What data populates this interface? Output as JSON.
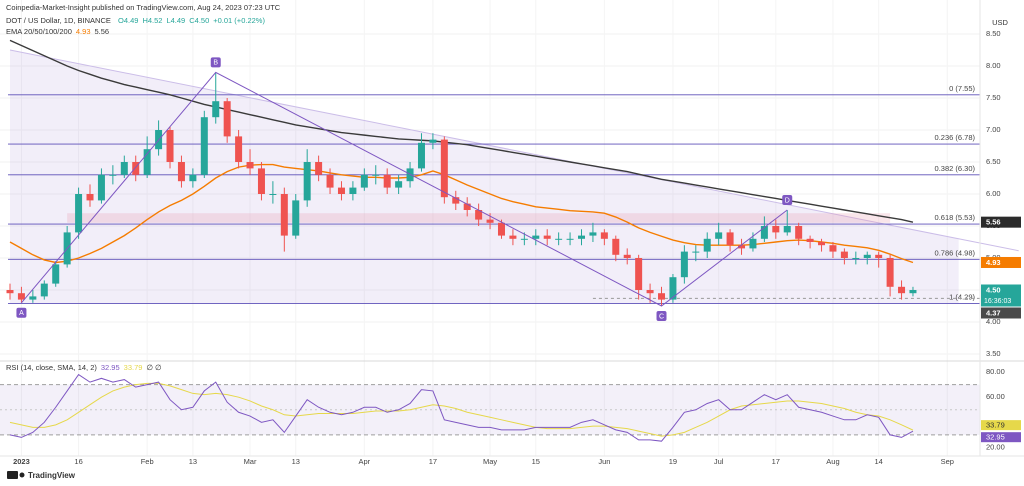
{
  "header": {
    "publisher": "Coinpedia-Market-Insight published on TradingView.com, Aug 24, 2023 07:23 UTC",
    "symbol": "DOT / US Dollar, 1D, BINANCE",
    "ohlc": [
      "O4.49",
      "H4.52",
      "L4.49",
      "C4.50",
      "+0.01 (+0.22%)"
    ],
    "currency": "USD"
  },
  "footer": {
    "brand": "TradingView"
  },
  "chart_data": {
    "type": "candlestick",
    "up_color": "#26a69a",
    "down_color": "#ef5350",
    "grid": true,
    "ylim": [
      3.4,
      8.75
    ],
    "yticks": [
      {
        "value": 3.5,
        "label": "3.50"
      },
      {
        "value": 4,
        "label": "4.00"
      },
      {
        "value": 4.5,
        "label": "4.50"
      },
      {
        "value": 5,
        "label": "5.00"
      },
      {
        "value": 5.5,
        "label": "5.50"
      },
      {
        "value": 6,
        "label": "6.00"
      },
      {
        "value": 6.5,
        "label": "6.50"
      },
      {
        "value": 7,
        "label": "7.00"
      },
      {
        "value": 7.5,
        "label": "7.50"
      },
      {
        "value": 8,
        "label": "8.00"
      },
      {
        "value": 8.5,
        "label": "8.50"
      }
    ],
    "categories": [
      null,
      "2023",
      null,
      null,
      null,
      null,
      "16",
      null,
      null,
      null,
      null,
      null,
      "Feb",
      null,
      null,
      null,
      "13",
      null,
      null,
      null,
      null,
      "Mar",
      null,
      null,
      null,
      "13",
      null,
      null,
      null,
      null,
      null,
      "Apr",
      null,
      null,
      null,
      null,
      null,
      "17",
      null,
      null,
      null,
      null,
      "May",
      null,
      null,
      null,
      "15",
      null,
      null,
      null,
      null,
      null,
      "Jun",
      null,
      null,
      null,
      null,
      null,
      "19",
      null,
      null,
      null,
      "Jul",
      null,
      null,
      null,
      null,
      "17",
      null,
      null,
      null,
      null,
      "Aug",
      null,
      null,
      null,
      "14",
      null,
      null,
      null,
      null,
      null,
      "Sep",
      null
    ],
    "candles": {
      "open": [
        4.5,
        4.45,
        4.35,
        4.4,
        4.6,
        4.9,
        5.4,
        6.0,
        5.9,
        6.3,
        6.3,
        6.5,
        6.3,
        6.7,
        7.0,
        6.5,
        6.2,
        6.3,
        7.2,
        7.45,
        6.9,
        6.5,
        6.4,
        6.0,
        6.0,
        5.35,
        5.9,
        6.5,
        6.3,
        6.1,
        6.0,
        6.1,
        6.3,
        6.3,
        6.1,
        6.2,
        6.4,
        6.8,
        6.85,
        5.95,
        5.85,
        5.75,
        5.6,
        5.55,
        5.35,
        5.3,
        5.3,
        5.35,
        5.3,
        5.3,
        5.3,
        5.35,
        5.4,
        5.3,
        5.05,
        5.0,
        4.5,
        4.45,
        4.35,
        4.7,
        5.1,
        5.1,
        5.3,
        5.4,
        5.2,
        5.15,
        5.3,
        5.5,
        5.4,
        5.5,
        5.3,
        5.25,
        5.2,
        5.1,
        5.0,
        5.0,
        5.05,
        5.0,
        4.55,
        4.45,
        null,
        null,
        null,
        null
      ],
      "high": [
        4.6,
        4.55,
        4.5,
        4.65,
        4.95,
        5.5,
        6.1,
        6.15,
        6.4,
        6.45,
        6.6,
        6.6,
        6.9,
        7.15,
        7.05,
        6.6,
        6.4,
        7.3,
        7.9,
        7.5,
        7.0,
        6.7,
        6.5,
        6.2,
        6.1,
        6.0,
        6.7,
        6.6,
        6.4,
        6.2,
        6.2,
        6.4,
        6.45,
        6.4,
        6.3,
        6.5,
        6.95,
        6.95,
        6.9,
        6.05,
        5.95,
        5.85,
        5.7,
        5.6,
        5.45,
        5.4,
        5.45,
        5.45,
        5.4,
        5.4,
        5.45,
        5.55,
        5.45,
        5.35,
        5.15,
        5.05,
        4.6,
        4.55,
        4.75,
        5.2,
        5.2,
        5.4,
        5.55,
        5.45,
        5.3,
        5.4,
        5.65,
        5.6,
        5.75,
        5.55,
        5.35,
        5.3,
        5.25,
        5.15,
        5.1,
        5.1,
        5.1,
        5.05,
        4.65,
        4.55,
        null,
        null,
        null,
        null
      ],
      "low": [
        4.35,
        4.3,
        4.3,
        4.35,
        4.55,
        4.85,
        5.3,
        5.8,
        5.85,
        6.15,
        6.25,
        6.2,
        6.25,
        6.6,
        6.4,
        6.1,
        6.1,
        6.25,
        7.1,
        6.8,
        6.4,
        6.3,
        5.9,
        5.85,
        5.1,
        5.3,
        5.8,
        6.2,
        6.0,
        5.9,
        5.9,
        6.05,
        6.15,
        6.0,
        6.0,
        6.1,
        6.35,
        6.7,
        5.85,
        5.75,
        5.65,
        5.5,
        5.45,
        5.3,
        5.2,
        5.2,
        5.2,
        5.2,
        5.2,
        5.2,
        5.2,
        5.25,
        5.2,
        4.95,
        4.9,
        4.35,
        4.3,
        4.25,
        4.3,
        4.6,
        4.95,
        5.0,
        5.2,
        5.1,
        5.05,
        5.1,
        5.25,
        5.3,
        5.35,
        5.2,
        5.15,
        5.1,
        5.0,
        4.9,
        4.9,
        4.9,
        4.85,
        4.4,
        4.35,
        4.4,
        null,
        null,
        null,
        null
      ],
      "close": [
        4.45,
        4.35,
        4.4,
        4.6,
        4.9,
        5.4,
        6.0,
        5.9,
        6.3,
        6.3,
        6.5,
        6.3,
        6.7,
        7.0,
        6.5,
        6.2,
        6.3,
        7.2,
        7.45,
        6.9,
        6.5,
        6.4,
        6.0,
        6.0,
        5.35,
        5.9,
        6.5,
        6.3,
        6.1,
        6.0,
        6.1,
        6.3,
        6.3,
        6.1,
        6.2,
        6.4,
        6.8,
        6.85,
        5.95,
        5.85,
        5.75,
        5.6,
        5.55,
        5.35,
        5.3,
        5.3,
        5.35,
        5.3,
        5.3,
        5.3,
        5.35,
        5.4,
        5.3,
        5.05,
        5.0,
        4.5,
        4.45,
        4.35,
        4.7,
        5.1,
        5.1,
        5.3,
        5.4,
        5.2,
        5.15,
        5.3,
        5.5,
        5.4,
        5.5,
        5.3,
        5.25,
        5.2,
        5.1,
        5.0,
        5.0,
        5.05,
        5.0,
        4.55,
        4.45,
        4.5,
        null,
        null,
        null,
        null
      ]
    },
    "ema": {
      "label": "EMA 20/50/100/200",
      "series": [
        {
          "color": "#f57c00",
          "last_label": "4.93",
          "values": [
            5.25,
            5.15,
            5.05,
            4.97,
            4.93,
            4.95,
            5.0,
            5.07,
            5.15,
            5.25,
            5.35,
            5.47,
            5.6,
            5.72,
            5.82,
            5.9,
            6.0,
            6.12,
            6.25,
            6.35,
            6.42,
            6.45,
            6.46,
            6.46,
            6.42,
            6.4,
            6.38,
            6.36,
            6.33,
            6.3,
            6.28,
            6.26,
            6.26,
            6.25,
            6.25,
            6.26,
            6.3,
            6.36,
            6.3,
            6.22,
            6.14,
            6.07,
            6.0,
            5.93,
            5.88,
            5.84,
            5.8,
            5.78,
            5.76,
            5.74,
            5.73,
            5.72,
            5.7,
            5.64,
            5.56,
            5.47,
            5.4,
            5.34,
            5.28,
            5.24,
            5.21,
            5.2,
            5.2,
            5.2,
            5.2,
            5.21,
            5.23,
            5.25,
            5.27,
            5.28,
            5.27,
            5.25,
            5.23,
            5.2,
            5.18,
            5.16,
            5.12,
            5.06,
            4.99,
            4.93,
            null,
            null,
            null,
            null
          ]
        },
        {
          "color": "#3a3a3a",
          "last_label": "5.56",
          "values": [
            8.4,
            8.32,
            8.24,
            8.16,
            8.08,
            8.0,
            7.93,
            7.87,
            7.81,
            7.76,
            7.71,
            7.67,
            7.63,
            7.59,
            7.55,
            7.5,
            7.45,
            7.4,
            7.36,
            7.32,
            7.28,
            7.24,
            7.2,
            7.16,
            7.12,
            7.08,
            7.05,
            7.02,
            6.99,
            6.96,
            6.94,
            6.92,
            6.9,
            6.88,
            6.86,
            6.85,
            6.84,
            6.83,
            6.81,
            6.79,
            6.77,
            6.74,
            6.71,
            6.68,
            6.65,
            6.62,
            6.59,
            6.56,
            6.53,
            6.5,
            6.47,
            6.44,
            6.41,
            6.38,
            6.35,
            6.31,
            6.27,
            6.23,
            6.2,
            6.17,
            6.14,
            6.11,
            6.08,
            6.05,
            6.02,
            5.99,
            5.96,
            5.93,
            5.9,
            5.87,
            5.84,
            5.81,
            5.78,
            5.75,
            5.72,
            5.69,
            5.66,
            5.63,
            5.6,
            5.56,
            null,
            null,
            null,
            null
          ]
        }
      ]
    },
    "fib": [
      {
        "value": 7.55,
        "label": "0 (7.55)"
      },
      {
        "value": 6.78,
        "label": "0.236 (6.78)"
      },
      {
        "value": 6.3,
        "label": "0.382 (6.30)"
      },
      {
        "value": 5.53,
        "label": "0.618 (5.53)"
      },
      {
        "value": 4.98,
        "label": "0.786 (4.98)"
      },
      {
        "value": 4.29,
        "label": "1 (4.29)"
      }
    ],
    "fib_color": "#5c4fb8",
    "pattern": {
      "color": "#7e57c2",
      "labels": [
        "A",
        "B",
        "C",
        "D"
      ],
      "values": [
        4.3,
        7.9,
        4.25,
        5.75
      ],
      "index": [
        1,
        18,
        57,
        68
      ]
    },
    "resistance": {
      "start": 8.25,
      "end": 5.3
    },
    "zone": {
      "low": 5.55,
      "high": 5.7
    },
    "dashed_level": 4.37,
    "price_tags": [
      {
        "value": 5.56,
        "label": "5.56",
        "color": "#2b2b2b"
      },
      {
        "value": 4.93,
        "label": "4.93",
        "color": "#f57c00"
      },
      {
        "value": 4.5,
        "label": "4.50",
        "color": "#26a69a",
        "countdown": "16:36:03"
      },
      {
        "value": 4.37,
        "label": "4.37",
        "color": "#4a4a4a"
      }
    ],
    "rsi": {
      "label": "RSI (14, close, SMA, 14, 2)",
      "extra": "∅ ∅",
      "ylim": [
        14,
        88
      ],
      "yticks": [
        {
          "value": 20,
          "label": "20.00"
        },
        {
          "value": 60,
          "label": "60.00"
        },
        {
          "value": 80,
          "label": "80.00"
        }
      ],
      "bands": [
        30,
        70
      ],
      "middle": 50,
      "series": [
        {
          "color": "#7e57c2",
          "last_label": "32.95",
          "values": [
            30,
            28,
            32,
            40,
            52,
            65,
            78,
            72,
            75,
            72,
            74,
            68,
            70,
            72,
            58,
            50,
            52,
            65,
            72,
            56,
            48,
            45,
            40,
            42,
            32,
            45,
            58,
            52,
            48,
            46,
            48,
            52,
            52,
            48,
            50,
            55,
            66,
            65,
            42,
            40,
            38,
            36,
            36,
            34,
            34,
            34,
            36,
            36,
            36,
            36,
            40,
            42,
            38,
            34,
            32,
            26,
            26,
            25,
            36,
            48,
            50,
            55,
            58,
            50,
            50,
            56,
            62,
            58,
            62,
            52,
            50,
            48,
            45,
            42,
            42,
            46,
            44,
            30,
            28,
            32.95,
            null,
            null,
            null,
            null
          ]
        },
        {
          "color": "#e6d84a",
          "last_label": "33.79",
          "values": [
            40,
            38,
            36,
            36,
            38,
            42,
            48,
            54,
            60,
            65,
            68,
            70,
            71,
            71,
            69,
            66,
            63,
            62,
            63,
            62,
            60,
            57,
            53,
            50,
            46,
            45,
            46,
            47,
            47,
            47,
            47,
            48,
            49,
            49,
            49,
            50,
            52,
            54,
            53,
            51,
            48,
            46,
            44,
            42,
            40,
            38,
            36,
            35,
            35,
            35,
            36,
            37,
            37,
            36,
            35,
            33,
            31,
            29,
            30,
            32,
            36,
            40,
            45,
            50,
            53,
            54,
            55,
            56,
            57,
            57,
            56,
            55,
            53,
            51,
            48,
            46,
            45,
            42,
            38,
            33.79,
            null,
            null,
            null,
            null
          ]
        }
      ]
    }
  }
}
